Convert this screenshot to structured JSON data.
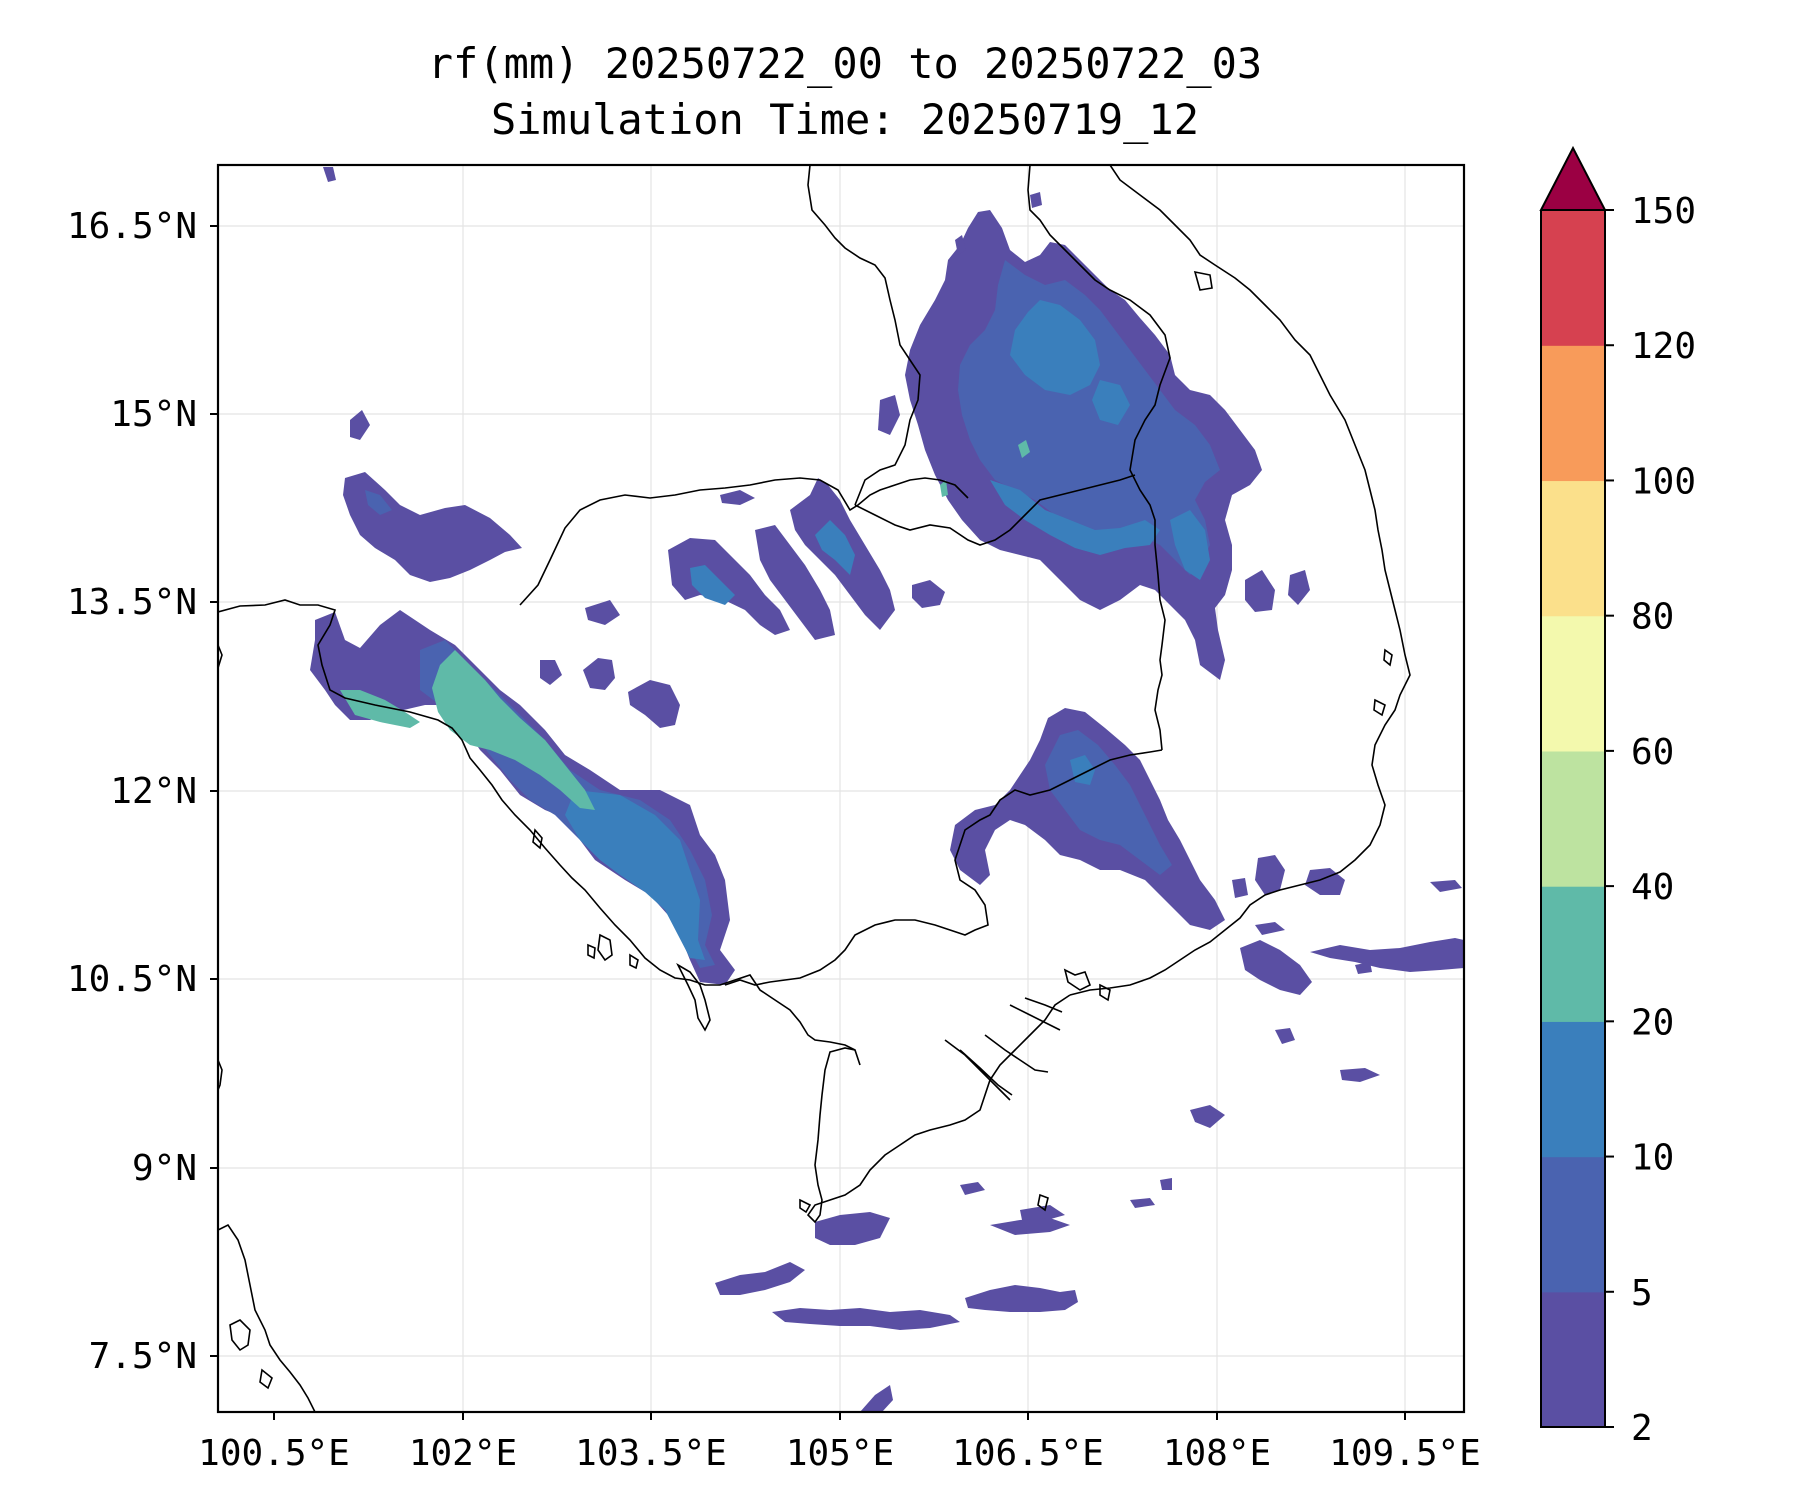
{
  "title": {
    "line1": "rf(mm) 20250722_00 to 20250722_03",
    "line2": "Simulation Time: 20250719_12"
  },
  "map": {
    "lon_ticks": [
      "100.5°E",
      "102°E",
      "103.5°E",
      "105°E",
      "106.5°E",
      "108°E",
      "109.5°E"
    ],
    "lat_ticks": [
      "16.5°N",
      "15°N",
      "13.5°N",
      "12°N",
      "10.5°N",
      "9°N",
      "7.5°N"
    ],
    "gridlines": true
  },
  "colorbar": {
    "tick_labels": [
      "2",
      "5",
      "10",
      "20",
      "40",
      "60",
      "80",
      "100",
      "120",
      "150"
    ],
    "bins": [
      {
        "from": 2,
        "to": 5,
        "color": "#5a4fa3"
      },
      {
        "from": 5,
        "to": 10,
        "color": "#4a63b0"
      },
      {
        "from": 10,
        "to": 20,
        "color": "#3a7fbc"
      },
      {
        "from": 20,
        "to": 40,
        "color": "#5fbaa8"
      },
      {
        "from": 40,
        "to": 60,
        "color": "#bde3a0"
      },
      {
        "from": 60,
        "to": 80,
        "color": "#f3f9ad"
      },
      {
        "from": 80,
        "to": 100,
        "color": "#fbe08b"
      },
      {
        "from": 100,
        "to": 120,
        "color": "#f89b5a"
      },
      {
        "from": 120,
        "to": 150,
        "color": "#d64150"
      }
    ],
    "extend_color": "#9b0043",
    "extend": "max"
  }
}
